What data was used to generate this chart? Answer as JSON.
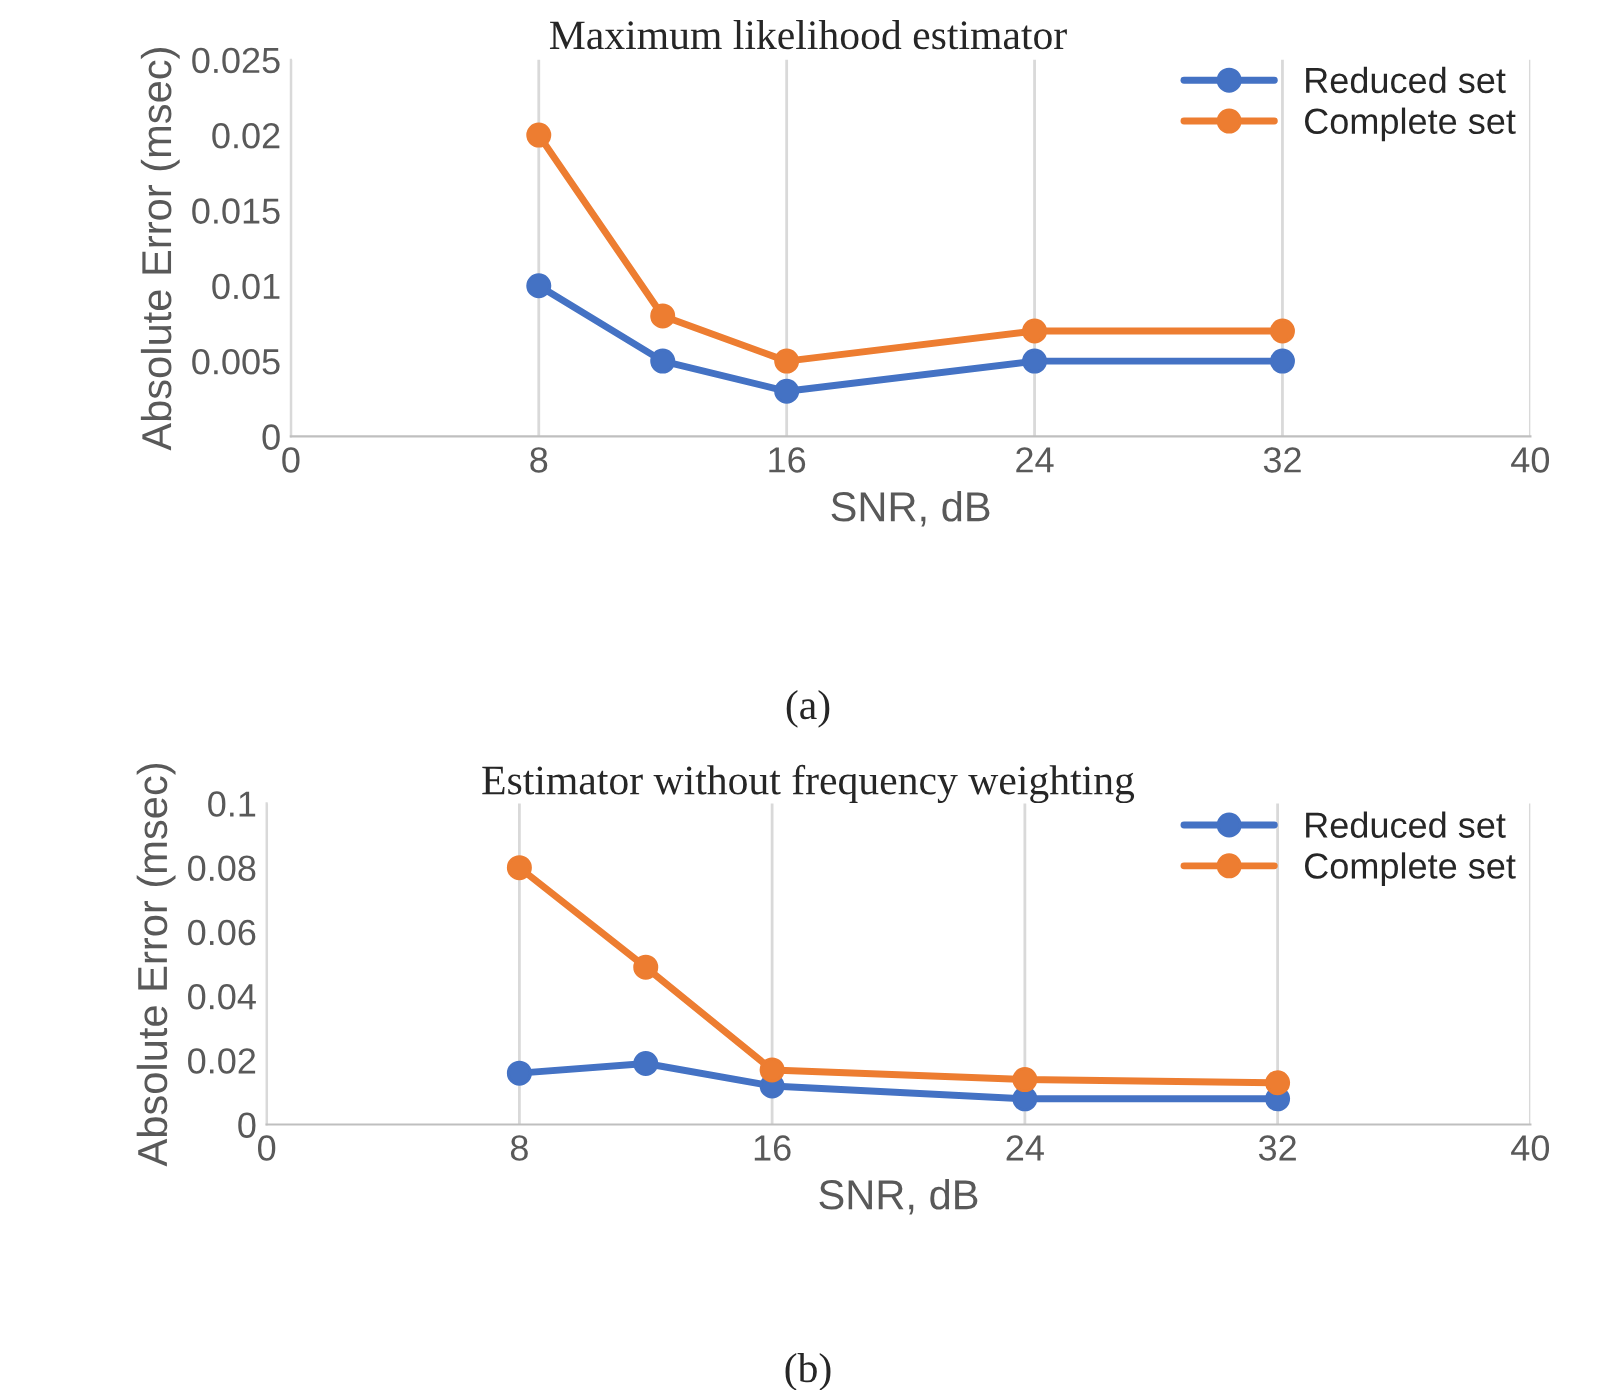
{
  "chart_data": [
    {
      "type": "line",
      "title": "Maximum likelihood estimator",
      "xlabel": "SNR, dB",
      "ylabel": "Absolute Error (msec)",
      "x": [
        8,
        12,
        16,
        24,
        32
      ],
      "series": [
        {
          "name": "Reduced set",
          "color": "#4472c4",
          "values": [
            0.01,
            0.005,
            0.003,
            0.005,
            0.005
          ]
        },
        {
          "name": "Complete set",
          "color": "#ed7d31",
          "values": [
            0.02,
            0.008,
            0.005,
            0.007,
            0.007
          ]
        }
      ],
      "xlim": [
        0,
        40
      ],
      "xticks": [
        0,
        8,
        16,
        24,
        32,
        40
      ],
      "ylim": [
        0,
        0.025
      ],
      "yticks": [
        0,
        0.005,
        0.01,
        0.015,
        0.02,
        0.025
      ],
      "grid": "x",
      "legend": "top right",
      "marker": "circle",
      "line_style": "solid",
      "annotations": [
        "(a)"
      ]
    },
    {
      "type": "line",
      "title": "Estimator without frequency weighting",
      "xlabel": "SNR, dB",
      "ylabel": "Absolute Error (msec)",
      "x": [
        8,
        12,
        16,
        24,
        32
      ],
      "series": [
        {
          "name": "Reduced set",
          "color": "#4472c4",
          "values": [
            0.016,
            0.019,
            0.012,
            0.008,
            0.008
          ]
        },
        {
          "name": "Complete set",
          "color": "#ed7d31",
          "values": [
            0.08,
            0.049,
            0.017,
            0.014,
            0.013
          ]
        }
      ],
      "xlim": [
        0,
        40
      ],
      "xticks": [
        0,
        8,
        16,
        24,
        32,
        40
      ],
      "ylim": [
        0,
        0.1
      ],
      "yticks": [
        0,
        0.02,
        0.04,
        0.06,
        0.08,
        0.1
      ],
      "grid": "x",
      "legend": "top right",
      "marker": "circle",
      "line_style": "solid",
      "annotations": [
        "(b)"
      ]
    }
  ]
}
